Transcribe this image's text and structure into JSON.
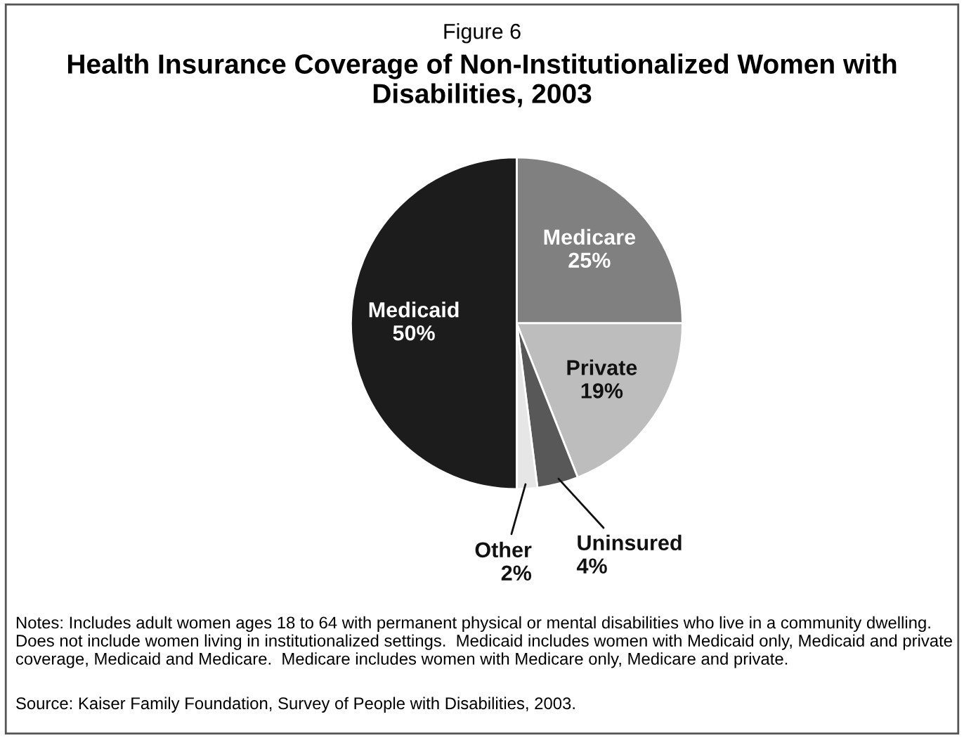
{
  "chart_data": {
    "type": "pie",
    "subtitle": "Figure 6",
    "title": "Health Insurance Coverage of Non-Institutionalized Women with Disabilities, 2003",
    "categories": [
      "Medicare",
      "Private",
      "Uninsured",
      "Other",
      "Medicaid"
    ],
    "values": [
      25,
      19,
      4,
      2,
      50
    ],
    "colors": [
      "#808080",
      "#bdbdbd",
      "#585858",
      "#e6e6e6",
      "#1c1c1c"
    ],
    "value_labels": [
      "25%",
      "19%",
      "4%",
      "2%",
      "50%"
    ],
    "annotations": [
      "Notes: Includes adult women ages 18 to 64 with permanent physical or mental disabilities who live in a community dwelling.  Does not include women living in institutionalized settings.  Medicaid includes women with Medicaid only, Medicaid and private coverage, Medicaid and Medicare.  Medicare includes women with Medicare only, Medicare and private.",
      "Source: Kaiser Family Foundation, Survey of People with Disabilities, 2003."
    ]
  }
}
